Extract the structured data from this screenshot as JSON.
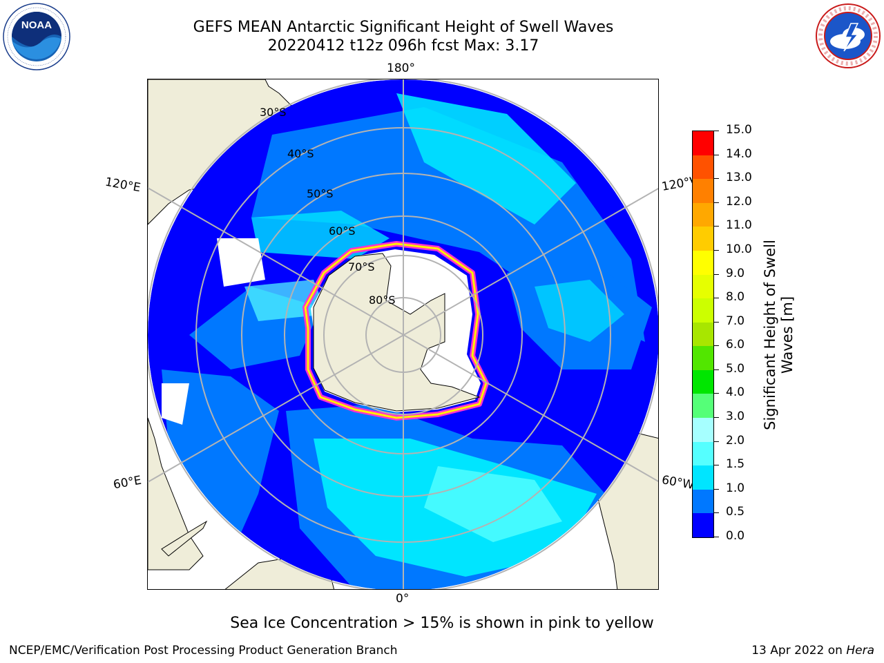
{
  "title": {
    "line1": "GEFS MEAN Antarctic Significant Height of Swell Waves",
    "line2": "20220412 t12z 096h fcst   Max: 3.17"
  },
  "logos": {
    "left": {
      "name": "NOAA",
      "text": "NOAA",
      "ring_text": "NATIONAL OCEANIC AND ATMOSPHERIC ADMINISTRATION · U.S. DEPARTMENT OF COMMERCE"
    },
    "right": {
      "name": "National Weather Service",
      "ring_text": "NATIONAL WEATHER SERVICE"
    }
  },
  "map": {
    "projection": "South Polar Stereographic",
    "longitude_labels": [
      "180°",
      "120°E",
      "120°W",
      "60°E",
      "60°W",
      "0°"
    ],
    "latitude_labels": [
      "30°S",
      "40°S",
      "50°S",
      "60°S",
      "70°S",
      "80°S"
    ],
    "colors": {
      "land": "#efedd9",
      "ocean_low": "#0000ff",
      "ocean_mid": "#0078ff",
      "ocean_high": "#00e5ff",
      "ice_edge": "#ff33cc",
      "grid": "#b3b3b3"
    }
  },
  "colorbar": {
    "label": "Significant Height of Swell Waves [m]",
    "label_lines": [
      "Significant Height of Swell",
      "Waves [m]"
    ],
    "ticks": [
      "0.0",
      "0.5",
      "1.0",
      "1.5",
      "2.0",
      "3.0",
      "4.0",
      "5.0",
      "6.0",
      "7.0",
      "8.0",
      "9.0",
      "10.0",
      "11.0",
      "12.0",
      "13.0",
      "14.0",
      "15.0"
    ],
    "colors": [
      "#0000ff",
      "#0078ff",
      "#00e5ff",
      "#55ffff",
      "#a6ffff",
      "#55ff78",
      "#00e600",
      "#52e600",
      "#a8e600",
      "#ccff00",
      "#e6ff00",
      "#ffff00",
      "#ffcc00",
      "#ffa800",
      "#ff8000",
      "#ff5200",
      "#ff0000"
    ]
  },
  "ice_note": "Sea Ice Concentration > 15% is shown in pink to yellow",
  "footer": {
    "left": "NCEP/EMC/Verification Post Processing Product Generation Branch",
    "right_prefix": "13 Apr 2022 on ",
    "right_machine": "Hera"
  }
}
